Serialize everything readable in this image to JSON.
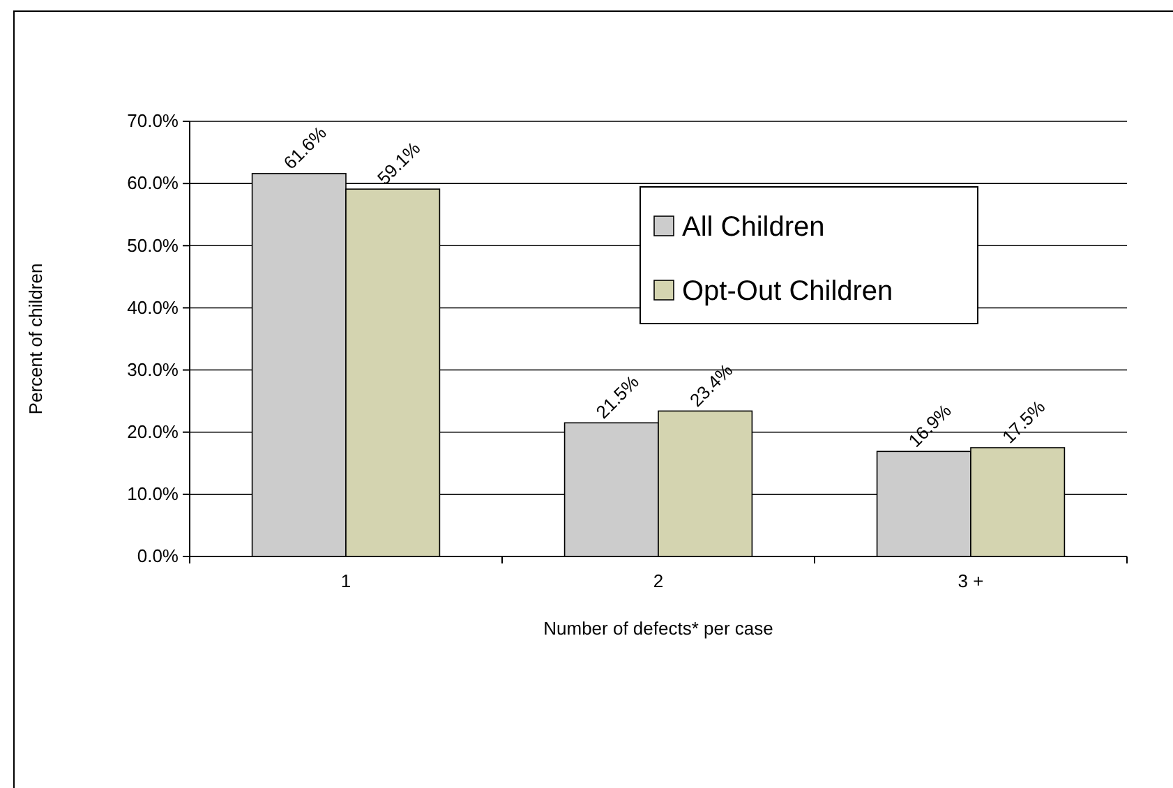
{
  "chart_data": {
    "type": "bar",
    "xlabel": "Number of defects* per case",
    "ylabel": "Percent of children",
    "categories": [
      "1",
      "2",
      "3 +"
    ],
    "series": [
      {
        "name": "All Children",
        "color": "#cccccc",
        "values": [
          61.6,
          21.5,
          16.9
        ],
        "value_labels": [
          "61.6%",
          "21.5%",
          "16.9%"
        ]
      },
      {
        "name": "Opt-Out Children",
        "color": "#d4d4b0",
        "values": [
          59.1,
          23.4,
          17.5
        ],
        "value_labels": [
          "59.1%",
          "23.4%",
          "17.5%"
        ]
      }
    ],
    "ylim": [
      0,
      70
    ],
    "yticks": [
      {
        "value": 0,
        "label": "0.0%"
      },
      {
        "value": 10,
        "label": "10.0%"
      },
      {
        "value": 20,
        "label": "20.0%"
      },
      {
        "value": 30,
        "label": "30.0%"
      },
      {
        "value": 40,
        "label": "40.0%"
      },
      {
        "value": 50,
        "label": "50.0%"
      },
      {
        "value": 60,
        "label": "60.0%"
      },
      {
        "value": 70,
        "label": "70.0%"
      }
    ],
    "grid": "y",
    "legend": "top right"
  }
}
